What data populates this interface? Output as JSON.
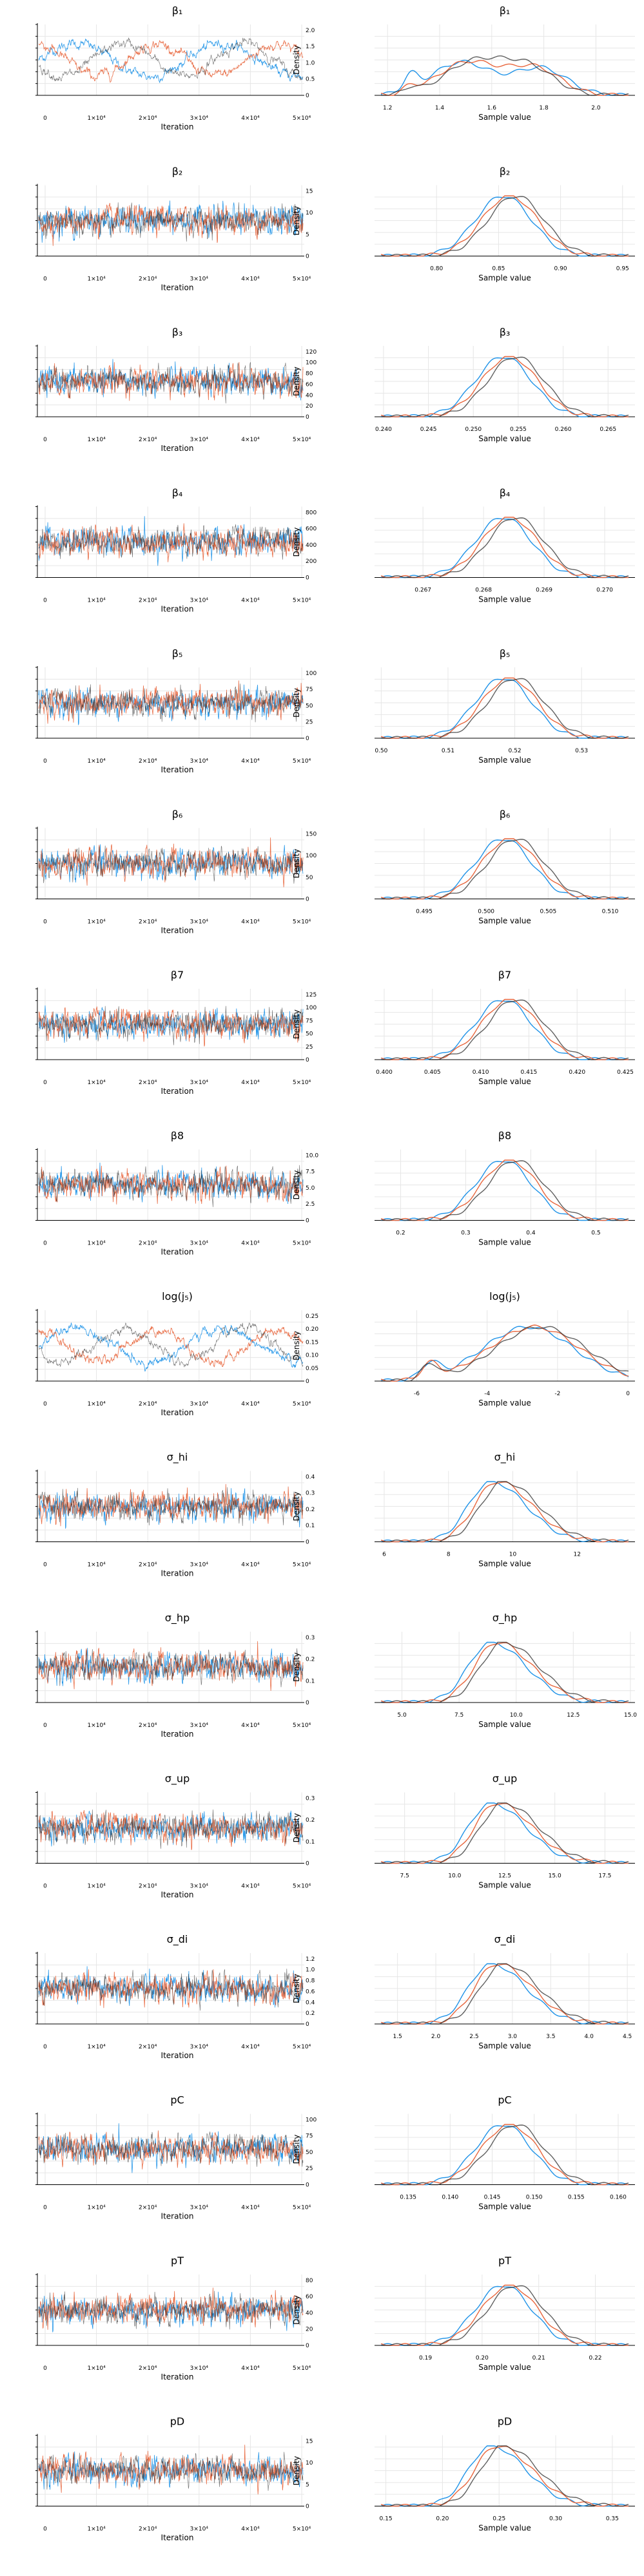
{
  "chart_data": {
    "type": "line",
    "layout": "trace-and-density-grid",
    "series_colors": [
      "#1f93e8",
      "#e8663d",
      "#2b2b2b"
    ],
    "x_label_trace": "Iteration",
    "x_label_density": "Sample value",
    "y_label_density": "Density",
    "trace_x_ticks": [
      "0",
      "1×10⁴",
      "2×10⁴",
      "3×10⁴",
      "4×10⁴",
      "5×10⁴"
    ],
    "rows": [
      {
        "title": "β₁",
        "density_x_ticks": [
          "1.2",
          "1.4",
          "1.6",
          "1.8",
          "2.0"
        ],
        "density_x_range": [
          1.15,
          2.15
        ],
        "density_y_ticks": [
          "0",
          "0.5",
          "1.0",
          "1.5",
          "2.0"
        ],
        "density_y_max": 2.3,
        "trace_style": "bimodal",
        "density_shape": "bimodal"
      },
      {
        "title": "β₂",
        "density_x_ticks": [
          "0.80",
          "0.85",
          "0.90",
          "0.95"
        ],
        "density_x_range": [
          0.75,
          0.96
        ],
        "density_y_ticks": [
          "0",
          "5",
          "10",
          "15"
        ],
        "density_y_max": 17,
        "trace_style": "noise",
        "density_shape": "normal"
      },
      {
        "title": "β₃",
        "density_x_ticks": [
          "0.240",
          "0.245",
          "0.250",
          "0.255",
          "0.260",
          "0.265"
        ],
        "density_x_range": [
          0.239,
          0.268
        ],
        "density_y_ticks": [
          "0",
          "20",
          "40",
          "60",
          "80",
          "100",
          "120"
        ],
        "density_y_max": 135,
        "trace_style": "noise",
        "density_shape": "normal"
      },
      {
        "title": "β₄",
        "density_x_ticks": [
          "0.267",
          "0.268",
          "0.269",
          "0.270"
        ],
        "density_x_range": [
          0.2662,
          0.2705
        ],
        "density_y_ticks": [
          "0",
          "200",
          "400",
          "600",
          "800"
        ],
        "density_y_max": 920,
        "trace_style": "noise",
        "density_shape": "normal"
      },
      {
        "title": "β₅",
        "density_x_ticks": [
          "0.50",
          "0.51",
          "0.52",
          "0.53"
        ],
        "density_x_range": [
          0.499,
          0.538
        ],
        "density_y_ticks": [
          "0",
          "25",
          "50",
          "75",
          "100"
        ],
        "density_y_max": 105,
        "trace_style": "noise",
        "density_shape": "normal"
      },
      {
        "title": "β₆",
        "density_x_ticks": [
          "0.495",
          "0.500",
          "0.505",
          "0.510"
        ],
        "density_x_range": [
          0.491,
          0.512
        ],
        "density_y_ticks": [
          "0",
          "50",
          "100",
          "150"
        ],
        "density_y_max": 190,
        "trace_style": "noise",
        "density_shape": "normal"
      },
      {
        "title": "β7",
        "density_x_ticks": [
          "0.400",
          "0.405",
          "0.410",
          "0.415",
          "0.420",
          "0.425"
        ],
        "density_x_range": [
          0.399,
          0.426
        ],
        "density_y_ticks": [
          "0",
          "25",
          "50",
          "75",
          "100",
          "125"
        ],
        "density_y_max": 150,
        "trace_style": "noise",
        "density_shape": "normal"
      },
      {
        "title": "β8",
        "density_x_ticks": [
          "0.2",
          "0.3",
          "0.4",
          "0.5"
        ],
        "density_x_range": [
          0.16,
          0.56
        ],
        "density_y_ticks": [
          "0",
          "2.5",
          "5.0",
          "7.5",
          "10.0"
        ],
        "density_y_max": 11,
        "trace_style": "noise",
        "density_shape": "normal"
      },
      {
        "title": "log(j₅)",
        "density_x_ticks": [
          "-6",
          "-4",
          "-2",
          "0"
        ],
        "density_x_range": [
          -7.2,
          0.2
        ],
        "density_y_ticks": [
          "0",
          "0.05",
          "0.10",
          "0.15",
          "0.20",
          "0.25"
        ],
        "density_y_max": 0.3,
        "trace_style": "bimodal",
        "density_shape": "wide"
      },
      {
        "title": "σ_hi",
        "density_x_ticks": [
          "6",
          "8",
          "10",
          "12"
        ],
        "density_x_range": [
          5.7,
          13.8
        ],
        "density_y_ticks": [
          "0",
          "0.1",
          "0.2",
          "0.3",
          "0.4"
        ],
        "density_y_max": 0.48,
        "trace_style": "noise",
        "density_shape": "skew"
      },
      {
        "title": "σ_hp",
        "density_x_ticks": [
          "5.0",
          "7.5",
          "10.0",
          "12.5",
          "15.0"
        ],
        "density_x_range": [
          3.8,
          15.2
        ],
        "density_y_ticks": [
          "0",
          "0.1",
          "0.2",
          "0.3"
        ],
        "density_y_max": 0.36,
        "trace_style": "noise",
        "density_shape": "skew"
      },
      {
        "title": "σ_up",
        "density_x_ticks": [
          "7.5",
          "10.0",
          "12.5",
          "15.0",
          "17.5"
        ],
        "density_x_range": [
          6.0,
          19.0
        ],
        "density_y_ticks": [
          "0",
          "0.1",
          "0.2",
          "0.3"
        ],
        "density_y_max": 0.33,
        "trace_style": "noise",
        "density_shape": "skew"
      },
      {
        "title": "σ_di",
        "density_x_ticks": [
          "1.5",
          "2.0",
          "2.5",
          "3.0",
          "3.5",
          "4.0",
          "4.5"
        ],
        "density_x_range": [
          1.2,
          4.6
        ],
        "density_y_ticks": [
          "0",
          "0.2",
          "0.4",
          "0.6",
          "0.8",
          "1.0",
          "1.2"
        ],
        "density_y_max": 1.35,
        "trace_style": "noise",
        "density_shape": "skew"
      },
      {
        "title": "pC",
        "density_x_ticks": [
          "0.135",
          "0.140",
          "0.145",
          "0.150",
          "0.155",
          "0.160"
        ],
        "density_x_range": [
          0.131,
          0.162
        ],
        "density_y_ticks": [
          "0",
          "25",
          "50",
          "75",
          "100"
        ],
        "density_y_max": 118,
        "trace_style": "noise",
        "density_shape": "normal"
      },
      {
        "title": "pT",
        "density_x_ticks": [
          "0.19",
          "0.20",
          "0.21",
          "0.22"
        ],
        "density_x_range": [
          0.181,
          0.227
        ],
        "density_y_ticks": [
          "0",
          "20",
          "40",
          "60",
          "80"
        ],
        "density_y_max": 88,
        "trace_style": "noise",
        "density_shape": "normal"
      },
      {
        "title": "pD",
        "density_x_ticks": [
          "0.15",
          "0.20",
          "0.25",
          "0.30",
          "0.35"
        ],
        "density_x_range": [
          0.14,
          0.37
        ],
        "density_y_ticks": [
          "0",
          "5",
          "10",
          "15"
        ],
        "density_y_max": 18,
        "trace_style": "noise",
        "density_shape": "skew"
      }
    ]
  }
}
